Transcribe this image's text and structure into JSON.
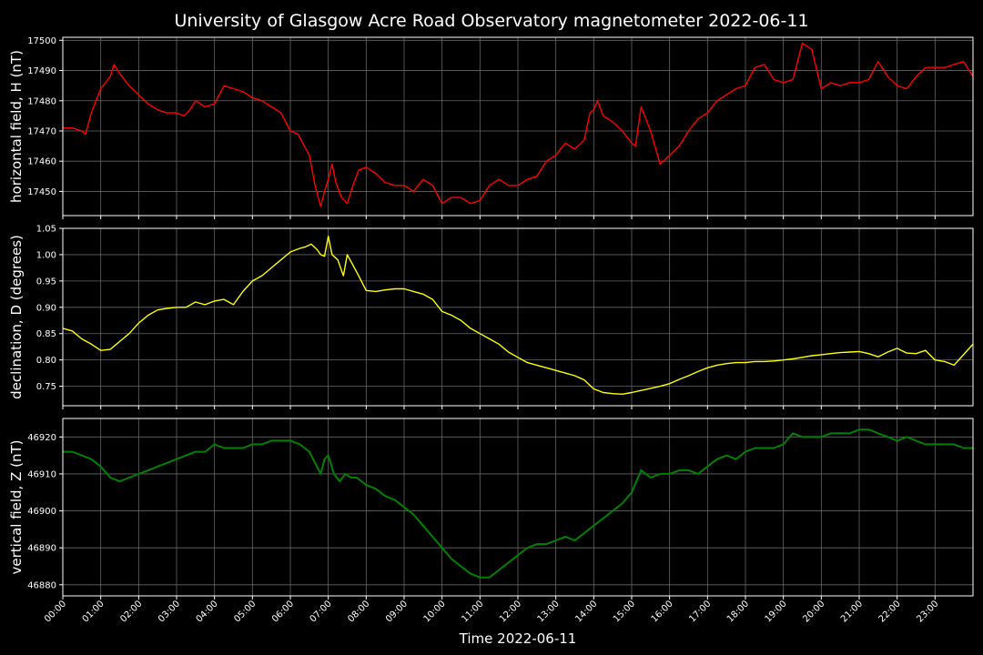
{
  "title": "University of Glasgow Acre Road Observatory magnetometer 2022-06-11",
  "xlabel": "Time 2022-06-11",
  "x_ticks": [
    "00:00",
    "01:00",
    "02:00",
    "03:00",
    "04:00",
    "05:00",
    "06:00",
    "07:00",
    "08:00",
    "09:00",
    "10:00",
    "11:00",
    "12:00",
    "13:00",
    "14:00",
    "15:00",
    "16:00",
    "17:00",
    "18:00",
    "19:00",
    "20:00",
    "21:00",
    "22:00",
    "23:00"
  ],
  "colors": {
    "background": "#000000",
    "axes": "#ffffff",
    "grid": "#666666",
    "H": "#ff0000",
    "D": "#ffff00",
    "Z": "#008000"
  },
  "chart_data": [
    {
      "type": "line",
      "ylabel": "horizontal field, H (nT)",
      "ylim": [
        17442,
        17501
      ],
      "y_ticks": [
        17450,
        17460,
        17470,
        17480,
        17490,
        17500
      ],
      "x_hours": [
        0,
        0.25,
        0.5,
        0.6,
        0.75,
        1.0,
        1.25,
        1.35,
        1.5,
        1.75,
        2.0,
        2.25,
        2.5,
        2.75,
        3.0,
        3.2,
        3.35,
        3.5,
        3.75,
        4.0,
        4.25,
        4.5,
        4.75,
        5.0,
        5.25,
        5.5,
        5.75,
        6.0,
        6.2,
        6.5,
        6.65,
        6.8,
        6.9,
        7.0,
        7.1,
        7.2,
        7.35,
        7.5,
        7.65,
        7.8,
        8.0,
        8.25,
        8.5,
        8.75,
        9.0,
        9.25,
        9.5,
        9.75,
        10.0,
        10.25,
        10.5,
        10.75,
        11.0,
        11.25,
        11.5,
        11.75,
        12.0,
        12.25,
        12.5,
        12.75,
        13.0,
        13.25,
        13.5,
        13.75,
        13.9,
        14.0,
        14.1,
        14.25,
        14.5,
        14.75,
        15.0,
        15.1,
        15.25,
        15.5,
        15.75,
        16.0,
        16.25,
        16.5,
        16.75,
        17.0,
        17.25,
        17.5,
        17.75,
        18.0,
        18.25,
        18.5,
        18.75,
        19.0,
        19.25,
        19.5,
        19.75,
        20.0,
        20.25,
        20.5,
        20.75,
        21.0,
        21.25,
        21.5,
        21.75,
        22.0,
        22.25,
        22.5,
        22.75,
        23.0,
        23.25,
        23.5,
        23.75,
        24.0
      ],
      "values": [
        17471,
        17471,
        17470,
        17469,
        17476,
        17484,
        17488,
        17492,
        17489,
        17485,
        17482,
        17479,
        17477,
        17476,
        17476,
        17475,
        17477,
        17480,
        17478,
        17479,
        17485,
        17484,
        17483,
        17481,
        17480,
        17478,
        17476,
        17470,
        17469,
        17462,
        17452,
        17445,
        17450,
        17454,
        17459,
        17453,
        17448,
        17446,
        17452,
        17457,
        17458,
        17456,
        17453,
        17452,
        17452,
        17450,
        17454,
        17452,
        17446,
        17448,
        17448,
        17446,
        17447,
        17452,
        17454,
        17452,
        17452,
        17454,
        17455,
        17460,
        17462,
        17466,
        17464,
        17467,
        17476,
        17477,
        17480,
        17475,
        17473,
        17470,
        17466,
        17465,
        17478,
        17470,
        17459,
        17462,
        17465,
        17470,
        17474,
        17476,
        17480,
        17482,
        17484,
        17485,
        17491,
        17492,
        17487,
        17486,
        17487,
        17499,
        17497,
        17484,
        17486,
        17485,
        17486,
        17486,
        17487,
        17493,
        17488,
        17485,
        17484,
        17488,
        17491,
        17491,
        17491,
        17492,
        17493,
        17488
      ]
    },
    {
      "type": "line",
      "ylabel": "declination, D (degrees)",
      "ylim": [
        0.713,
        1.05
      ],
      "y_ticks": [
        0.75,
        0.8,
        0.85,
        0.9,
        0.95,
        1.0,
        1.05
      ],
      "x_hours": [
        0,
        0.25,
        0.5,
        0.75,
        1.0,
        1.25,
        1.5,
        1.75,
        2.0,
        2.25,
        2.5,
        2.75,
        3.0,
        3.25,
        3.5,
        3.75,
        4.0,
        4.25,
        4.5,
        4.75,
        5.0,
        5.25,
        5.5,
        5.75,
        6.0,
        6.25,
        6.4,
        6.55,
        6.7,
        6.8,
        6.9,
        7.0,
        7.1,
        7.25,
        7.4,
        7.5,
        7.65,
        7.8,
        8.0,
        8.25,
        8.5,
        8.75,
        9.0,
        9.25,
        9.5,
        9.75,
        10.0,
        10.25,
        10.5,
        10.75,
        11.0,
        11.25,
        11.5,
        11.75,
        12.0,
        12.25,
        12.5,
        12.75,
        13.0,
        13.25,
        13.5,
        13.75,
        14.0,
        14.25,
        14.5,
        14.75,
        15.0,
        15.25,
        15.5,
        15.75,
        16.0,
        16.25,
        16.5,
        16.75,
        17.0,
        17.25,
        17.5,
        17.75,
        18.0,
        18.25,
        18.5,
        18.75,
        19.0,
        19.25,
        19.5,
        19.75,
        20.0,
        20.25,
        20.5,
        20.75,
        21.0,
        21.25,
        21.5,
        21.75,
        22.0,
        22.25,
        22.5,
        22.75,
        23.0,
        23.25,
        23.5,
        23.75,
        24.0
      ],
      "values": [
        0.86,
        0.855,
        0.84,
        0.83,
        0.818,
        0.82,
        0.835,
        0.85,
        0.87,
        0.885,
        0.895,
        0.898,
        0.9,
        0.9,
        0.91,
        0.905,
        0.912,
        0.915,
        0.905,
        0.93,
        0.95,
        0.96,
        0.975,
        0.99,
        1.005,
        1.012,
        1.015,
        1.02,
        1.01,
        1.0,
        0.997,
        1.035,
        1.0,
        0.99,
        0.96,
        1.0,
        0.98,
        0.96,
        0.932,
        0.93,
        0.933,
        0.935,
        0.935,
        0.93,
        0.925,
        0.915,
        0.892,
        0.885,
        0.875,
        0.86,
        0.85,
        0.84,
        0.83,
        0.815,
        0.805,
        0.795,
        0.79,
        0.785,
        0.78,
        0.775,
        0.77,
        0.762,
        0.745,
        0.738,
        0.736,
        0.735,
        0.738,
        0.742,
        0.746,
        0.75,
        0.755,
        0.763,
        0.77,
        0.778,
        0.785,
        0.79,
        0.793,
        0.795,
        0.795,
        0.797,
        0.797,
        0.798,
        0.8,
        0.802,
        0.805,
        0.808,
        0.81,
        0.812,
        0.814,
        0.815,
        0.816,
        0.812,
        0.806,
        0.815,
        0.822,
        0.813,
        0.812,
        0.818,
        0.8,
        0.797,
        0.79,
        0.81,
        0.83
      ]
    },
    {
      "type": "line",
      "ylabel": "vertical field, Z (nT)",
      "ylim": [
        46877,
        46925
      ],
      "y_ticks": [
        46880,
        46890,
        46900,
        46910,
        46920
      ],
      "x_hours": [
        0,
        0.25,
        0.5,
        0.75,
        1.0,
        1.25,
        1.5,
        1.75,
        2.0,
        2.25,
        2.5,
        2.75,
        3.0,
        3.25,
        3.5,
        3.75,
        4.0,
        4.25,
        4.5,
        4.75,
        5.0,
        5.25,
        5.5,
        5.75,
        6.0,
        6.25,
        6.5,
        6.65,
        6.8,
        6.9,
        7.0,
        7.15,
        7.3,
        7.45,
        7.6,
        7.75,
        8.0,
        8.25,
        8.5,
        8.75,
        9.0,
        9.25,
        9.5,
        9.75,
        10.0,
        10.25,
        10.5,
        10.75,
        11.0,
        11.25,
        11.5,
        11.75,
        12.0,
        12.25,
        12.5,
        12.75,
        13.0,
        13.25,
        13.5,
        13.75,
        14.0,
        14.25,
        14.5,
        14.75,
        15.0,
        15.25,
        15.5,
        15.75,
        16.0,
        16.25,
        16.5,
        16.75,
        17.0,
        17.25,
        17.5,
        17.75,
        18.0,
        18.25,
        18.5,
        18.75,
        19.0,
        19.25,
        19.5,
        19.75,
        20.0,
        20.25,
        20.5,
        20.75,
        21.0,
        21.25,
        21.5,
        21.75,
        22.0,
        22.25,
        22.5,
        22.75,
        23.0,
        23.25,
        23.5,
        23.75,
        24.0
      ],
      "values": [
        46916,
        46916,
        46915,
        46914,
        46912,
        46909,
        46908,
        46909,
        46910,
        46911,
        46912,
        46913,
        46914,
        46915,
        46916,
        46916,
        46918,
        46917,
        46917,
        46917,
        46918,
        46918,
        46919,
        46919,
        46919,
        46918,
        46916,
        46913,
        46910,
        46914,
        46915,
        46910,
        46908,
        46910,
        46909,
        46909,
        46907,
        46906,
        46904,
        46903,
        46901,
        46899,
        46896,
        46893,
        46890,
        46887,
        46885,
        46883,
        46882,
        46882,
        46884,
        46886,
        46888,
        46890,
        46891,
        46891,
        46892,
        46893,
        46892,
        46894,
        46896,
        46898,
        46900,
        46902,
        46905,
        46911,
        46909,
        46910,
        46910,
        46911,
        46911,
        46910,
        46912,
        46914,
        46915,
        46914,
        46916,
        46917,
        46917,
        46917,
        46918,
        46921,
        46920,
        46920,
        46920,
        46921,
        46921,
        46921,
        46922,
        46922,
        46921,
        46920,
        46919,
        46920,
        46919,
        46918,
        46918,
        46918,
        46918,
        46917,
        46917
      ]
    }
  ]
}
